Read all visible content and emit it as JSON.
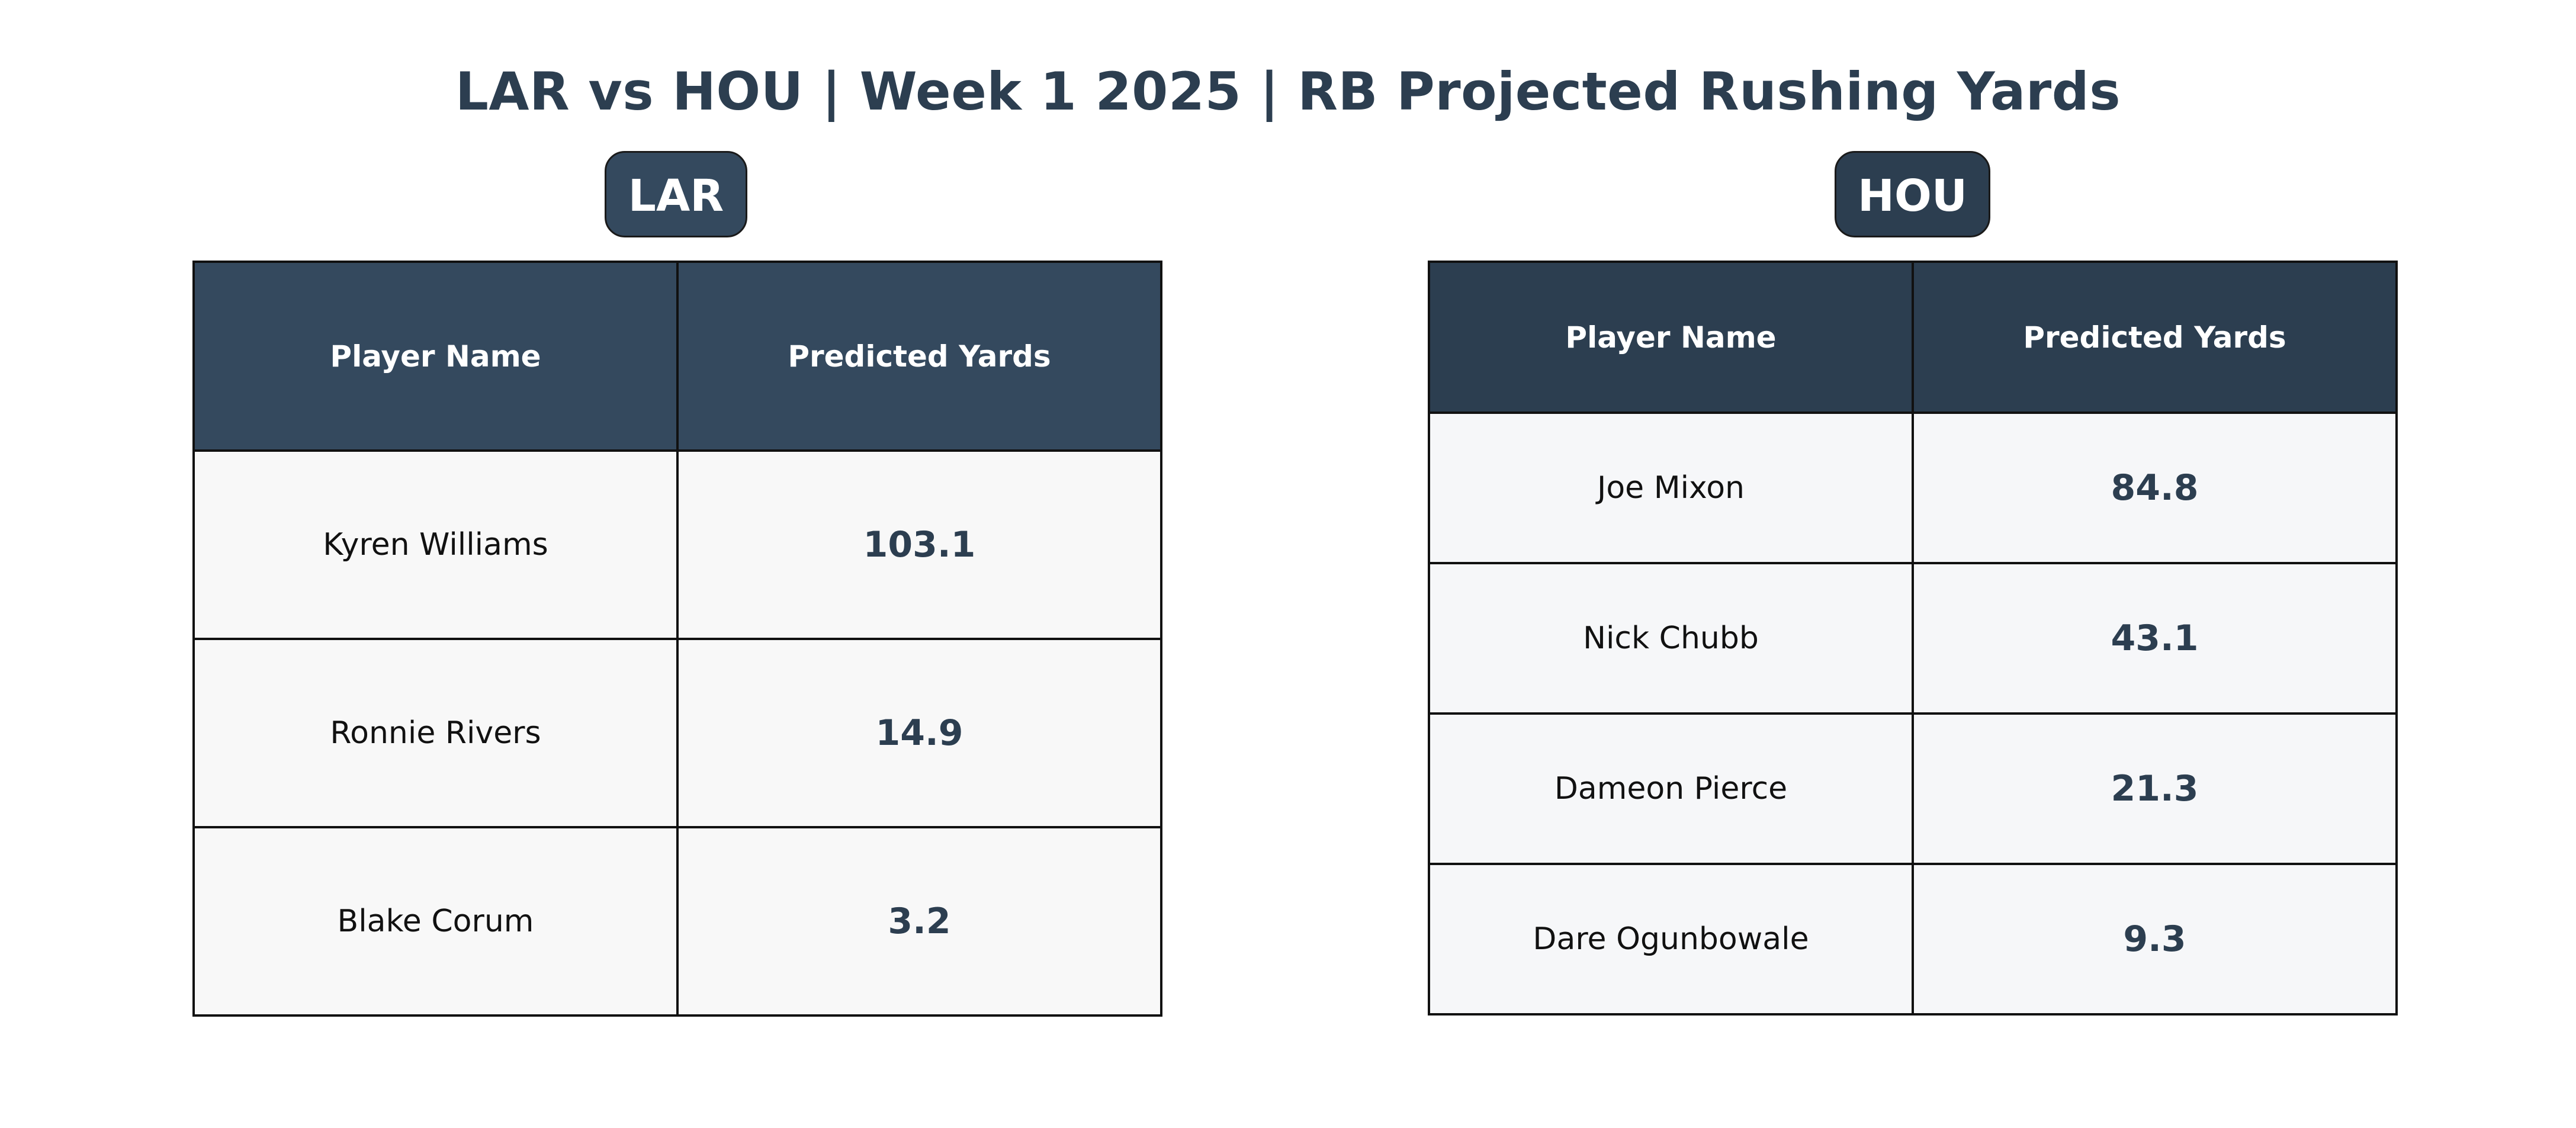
{
  "title": "LAR vs HOU | Week 1 2025 | RB Projected Rushing Yards",
  "chart_data": [
    {
      "type": "table",
      "team": "LAR",
      "columns": [
        "Player Name",
        "Predicted Yards"
      ],
      "rows": [
        {
          "player": "Kyren Williams",
          "yards": "103.1"
        },
        {
          "player": "Ronnie Rivers",
          "yards": "14.9"
        },
        {
          "player": "Blake Corum",
          "yards": "3.2"
        }
      ],
      "header_color": "#34495e"
    },
    {
      "type": "table",
      "team": "HOU",
      "columns": [
        "Player Name",
        "Predicted Yards"
      ],
      "rows": [
        {
          "player": "Joe Mixon",
          "yards": "84.8"
        },
        {
          "player": "Nick Chubb",
          "yards": "43.1"
        },
        {
          "player": "Dameon Pierce",
          "yards": "21.3"
        },
        {
          "player": "Dare Ogunbowale",
          "yards": "9.3"
        }
      ],
      "header_color": "#2c3e50"
    }
  ],
  "colors": {
    "title": "#2c3e50",
    "value_text": "#2c3e50",
    "cell_background": "#f8f8f8"
  }
}
